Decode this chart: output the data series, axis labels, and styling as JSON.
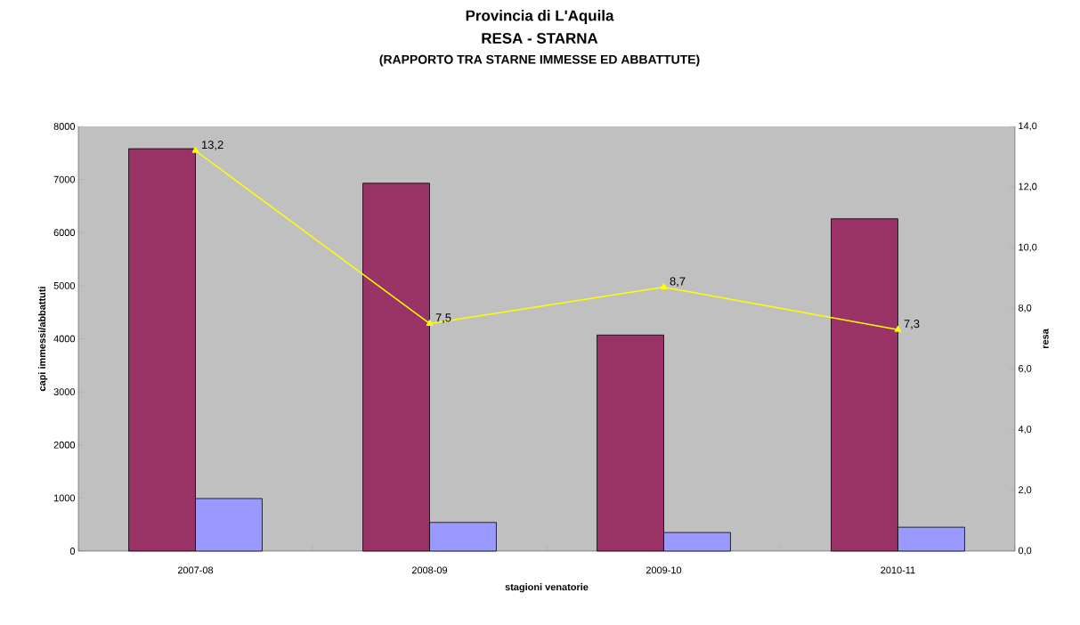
{
  "chart_data": {
    "type": "bar",
    "title": "Provincia di L'Aquila",
    "subtitle": "RESA - STARNA",
    "annotations": [
      "(RAPPORTO TRA STARNE IMMESSE ED ABBATTUTE)"
    ],
    "xlabel": "stagioni venatorie",
    "ylabel": "capi immessi/abbattuti",
    "y2label": "resa",
    "categories": [
      "2007-08",
      "2008-09",
      "2009-10",
      "2010-11"
    ],
    "series": [
      {
        "color": "#993366",
        "values": [
          7580,
          6930,
          4070,
          6260
        ]
      },
      {
        "color": "#9999ff",
        "values": [
          990,
          540,
          350,
          450
        ]
      },
      {
        "type": "line",
        "axis": "y2",
        "color": "#ffff00",
        "marker": "triangle",
        "values": [
          13.2,
          7.5,
          8.7,
          7.3
        ],
        "value_labels": [
          "13,2",
          "7,5",
          "8,7",
          "7,3"
        ]
      }
    ],
    "ylim": [
      0,
      8000
    ],
    "yticks": [
      0,
      1000,
      2000,
      3000,
      4000,
      5000,
      6000,
      7000,
      8000
    ],
    "y2lim": [
      0,
      14
    ],
    "y2ticks": [
      {
        "value": 0,
        "label": "0,0"
      },
      {
        "value": 2,
        "label": "2,0"
      },
      {
        "value": 4,
        "label": "4,0"
      },
      {
        "value": 6,
        "label": "6,0"
      },
      {
        "value": 8,
        "label": "8,0"
      },
      {
        "value": 10,
        "label": "10,0"
      },
      {
        "value": 12,
        "label": "12,0"
      },
      {
        "value": 14,
        "label": "14,0"
      }
    ],
    "grid": false
  }
}
